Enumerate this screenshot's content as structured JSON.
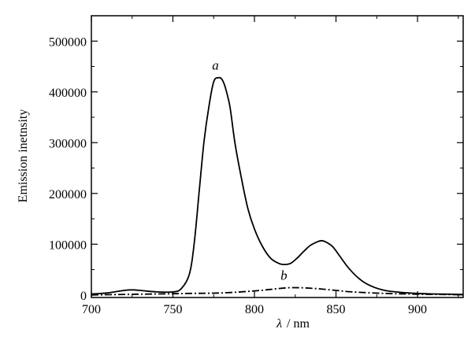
{
  "chart_data": {
    "type": "line",
    "xlabel_symbol": "λ",
    "xlabel_unit": "/ nm",
    "ylabel": "Emission inetnsity",
    "xlim": [
      700,
      928
    ],
    "ylim": [
      -5000,
      550000
    ],
    "x_ticks": [
      700,
      750,
      800,
      850,
      900
    ],
    "y_ticks": [
      0,
      100000,
      200000,
      300000,
      400000,
      500000
    ],
    "x_tick_labels": [
      "700",
      "750",
      "800",
      "850",
      "900"
    ],
    "y_tick_labels": [
      "0",
      "100000",
      "200000",
      "300000",
      "400000",
      "500000"
    ],
    "grid": false,
    "series": [
      {
        "name": "a",
        "style": "solid",
        "x": [
          700,
          710,
          720,
          725,
          730,
          740,
          750,
          755,
          760,
          763,
          766,
          769,
          772,
          775,
          778,
          780,
          782,
          785,
          788,
          792,
          796,
          800,
          805,
          810,
          815,
          818,
          822,
          826,
          830,
          834,
          838,
          841,
          844,
          848,
          852,
          858,
          865,
          872,
          880,
          890,
          900,
          910,
          920,
          928
        ],
        "y": [
          2000,
          4000,
          9000,
          10000,
          9000,
          6000,
          6000,
          12000,
          40000,
          100000,
          200000,
          300000,
          370000,
          420000,
          428000,
          425000,
          410000,
          370000,
          300000,
          230000,
          170000,
          130000,
          95000,
          72000,
          62000,
          60000,
          62000,
          72000,
          85000,
          97000,
          104000,
          107000,
          104000,
          95000,
          78000,
          52000,
          30000,
          17000,
          9000,
          5000,
          3000,
          2000,
          1500,
          1000
        ]
      },
      {
        "name": "b",
        "style": "dashdot",
        "x": [
          700,
          720,
          740,
          760,
          780,
          800,
          810,
          820,
          830,
          840,
          850,
          860,
          880,
          900,
          928
        ],
        "y": [
          0,
          1000,
          2000,
          3000,
          4000,
          8000,
          11000,
          14000,
          14000,
          12000,
          9000,
          6000,
          3000,
          1500,
          500
        ]
      }
    ]
  }
}
